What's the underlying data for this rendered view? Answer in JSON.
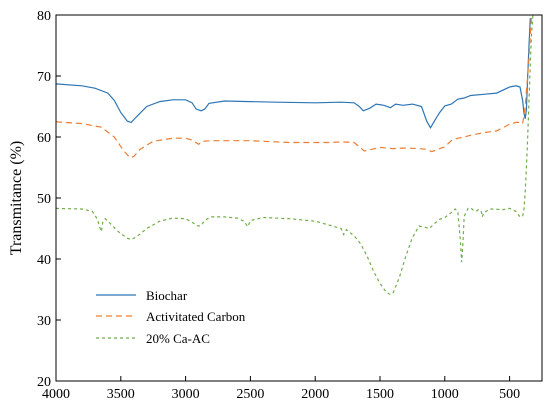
{
  "chart_data": {
    "type": "line",
    "title": "",
    "xlabel": "",
    "ylabel": "Transmitance (%)",
    "xlim": [
      4000,
      250
    ],
    "ylim": [
      20,
      80
    ],
    "x_reversed": true,
    "xticks": [
      4000,
      3500,
      3000,
      2500,
      2000,
      1500,
      1000,
      500
    ],
    "yticks": [
      20,
      30,
      40,
      50,
      60,
      70,
      80
    ],
    "grid": false,
    "legend_position": "bottom-left",
    "series": [
      {
        "name": "Biochar",
        "color": "#2e75b6",
        "dash": "solid",
        "points": [
          [
            4000,
            68.7
          ],
          [
            3800,
            68.4
          ],
          [
            3700,
            68.0
          ],
          [
            3600,
            67.2
          ],
          [
            3550,
            66.0
          ],
          [
            3500,
            64.0
          ],
          [
            3450,
            62.6
          ],
          [
            3420,
            62.4
          ],
          [
            3380,
            63.3
          ],
          [
            3300,
            65.0
          ],
          [
            3200,
            65.8
          ],
          [
            3100,
            66.1
          ],
          [
            3000,
            66.1
          ],
          [
            2950,
            65.6
          ],
          [
            2920,
            64.6
          ],
          [
            2880,
            64.3
          ],
          [
            2850,
            64.6
          ],
          [
            2820,
            65.5
          ],
          [
            2700,
            65.9
          ],
          [
            2500,
            65.8
          ],
          [
            2300,
            65.7
          ],
          [
            2000,
            65.6
          ],
          [
            1800,
            65.7
          ],
          [
            1700,
            65.6
          ],
          [
            1660,
            65.0
          ],
          [
            1630,
            64.3
          ],
          [
            1580,
            64.7
          ],
          [
            1530,
            65.4
          ],
          [
            1470,
            65.2
          ],
          [
            1420,
            64.8
          ],
          [
            1380,
            65.4
          ],
          [
            1320,
            65.2
          ],
          [
            1250,
            65.4
          ],
          [
            1180,
            65.0
          ],
          [
            1140,
            62.6
          ],
          [
            1110,
            61.5
          ],
          [
            1080,
            62.6
          ],
          [
            1040,
            64.0
          ],
          [
            1000,
            65.1
          ],
          [
            950,
            65.4
          ],
          [
            900,
            66.2
          ],
          [
            850,
            66.4
          ],
          [
            800,
            66.8
          ],
          [
            700,
            67.0
          ],
          [
            600,
            67.2
          ],
          [
            500,
            68.2
          ],
          [
            450,
            68.4
          ],
          [
            420,
            68.2
          ],
          [
            400,
            66.0
          ],
          [
            390,
            64.0
          ],
          [
            380,
            63.0
          ],
          [
            370,
            64.5
          ],
          [
            360,
            70.0
          ],
          [
            350,
            75.0
          ],
          [
            340,
            79.5
          ]
        ]
      },
      {
        "name": "Activitated Carbon",
        "color": "#ed7d31",
        "dash": "6,4",
        "points": [
          [
            4000,
            62.5
          ],
          [
            3800,
            62.2
          ],
          [
            3650,
            61.6
          ],
          [
            3550,
            60.0
          ],
          [
            3480,
            57.8
          ],
          [
            3430,
            56.6
          ],
          [
            3400,
            56.8
          ],
          [
            3350,
            58.0
          ],
          [
            3250,
            59.3
          ],
          [
            3100,
            59.8
          ],
          [
            3000,
            59.8
          ],
          [
            2950,
            59.5
          ],
          [
            2900,
            58.8
          ],
          [
            2870,
            59.3
          ],
          [
            2800,
            59.4
          ],
          [
            2500,
            59.4
          ],
          [
            2200,
            59.1
          ],
          [
            1900,
            59.1
          ],
          [
            1800,
            59.2
          ],
          [
            1700,
            59.1
          ],
          [
            1650,
            58.2
          ],
          [
            1620,
            57.7
          ],
          [
            1580,
            57.9
          ],
          [
            1500,
            58.3
          ],
          [
            1400,
            58.1
          ],
          [
            1300,
            58.2
          ],
          [
            1200,
            58.1
          ],
          [
            1150,
            58.0
          ],
          [
            1100,
            57.6
          ],
          [
            1050,
            58.0
          ],
          [
            1000,
            58.4
          ],
          [
            950,
            59.4
          ],
          [
            900,
            59.8
          ],
          [
            850,
            60.0
          ],
          [
            800,
            60.3
          ],
          [
            700,
            60.7
          ],
          [
            600,
            61.0
          ],
          [
            500,
            62.1
          ],
          [
            450,
            62.4
          ],
          [
            420,
            62.4
          ],
          [
            400,
            62.2
          ],
          [
            390,
            63.5
          ],
          [
            380,
            65.0
          ],
          [
            370,
            67.5
          ],
          [
            360,
            70.0
          ],
          [
            350,
            73.0
          ],
          [
            340,
            77.0
          ],
          [
            330,
            80.0
          ]
        ]
      },
      {
        "name": "20% Ca-AC",
        "color": "#70ad47",
        "dash": "3,3",
        "points": [
          [
            4000,
            48.3
          ],
          [
            3800,
            48.2
          ],
          [
            3720,
            47.8
          ],
          [
            3680,
            46.5
          ],
          [
            3660,
            45.0
          ],
          [
            3650,
            44.5
          ],
          [
            3640,
            46.0
          ],
          [
            3620,
            46.6
          ],
          [
            3580,
            45.8
          ],
          [
            3520,
            44.5
          ],
          [
            3450,
            43.4
          ],
          [
            3420,
            43.2
          ],
          [
            3380,
            43.6
          ],
          [
            3300,
            45.0
          ],
          [
            3200,
            46.2
          ],
          [
            3100,
            46.7
          ],
          [
            3000,
            46.6
          ],
          [
            2950,
            46.0
          ],
          [
            2900,
            45.4
          ],
          [
            2880,
            45.5
          ],
          [
            2850,
            46.4
          ],
          [
            2800,
            46.9
          ],
          [
            2700,
            46.9
          ],
          [
            2600,
            46.7
          ],
          [
            2550,
            46.2
          ],
          [
            2520,
            45.3
          ],
          [
            2500,
            46.3
          ],
          [
            2400,
            46.8
          ],
          [
            2200,
            46.6
          ],
          [
            2000,
            46.2
          ],
          [
            1900,
            45.6
          ],
          [
            1800,
            45.0
          ],
          [
            1780,
            44.0
          ],
          [
            1760,
            44.8
          ],
          [
            1700,
            43.8
          ],
          [
            1650,
            42.5
          ],
          [
            1600,
            40.5
          ],
          [
            1550,
            38.0
          ],
          [
            1500,
            36.0
          ],
          [
            1450,
            34.5
          ],
          [
            1420,
            34.2
          ],
          [
            1400,
            34.4
          ],
          [
            1350,
            37.0
          ],
          [
            1300,
            40.5
          ],
          [
            1250,
            43.5
          ],
          [
            1200,
            45.4
          ],
          [
            1150,
            45.2
          ],
          [
            1120,
            45.0
          ],
          [
            1080,
            45.8
          ],
          [
            1040,
            46.5
          ],
          [
            1000,
            46.8
          ],
          [
            950,
            47.6
          ],
          [
            920,
            48.2
          ],
          [
            900,
            47.8
          ],
          [
            880,
            43.0
          ],
          [
            870,
            39.5
          ],
          [
            860,
            42.5
          ],
          [
            850,
            47.0
          ],
          [
            820,
            48.3
          ],
          [
            800,
            48.4
          ],
          [
            780,
            48.0
          ],
          [
            760,
            47.8
          ],
          [
            740,
            48.1
          ],
          [
            720,
            47.9
          ],
          [
            710,
            46.9
          ],
          [
            700,
            47.6
          ],
          [
            650,
            48.2
          ],
          [
            550,
            48.1
          ],
          [
            500,
            48.3
          ],
          [
            450,
            47.8
          ],
          [
            420,
            46.9
          ],
          [
            400,
            47.0
          ],
          [
            390,
            48.0
          ],
          [
            380,
            51.0
          ],
          [
            370,
            55.0
          ],
          [
            360,
            60.0
          ],
          [
            350,
            66.0
          ],
          [
            340,
            72.0
          ],
          [
            330,
            77.0
          ],
          [
            320,
            80.0
          ]
        ]
      }
    ]
  }
}
